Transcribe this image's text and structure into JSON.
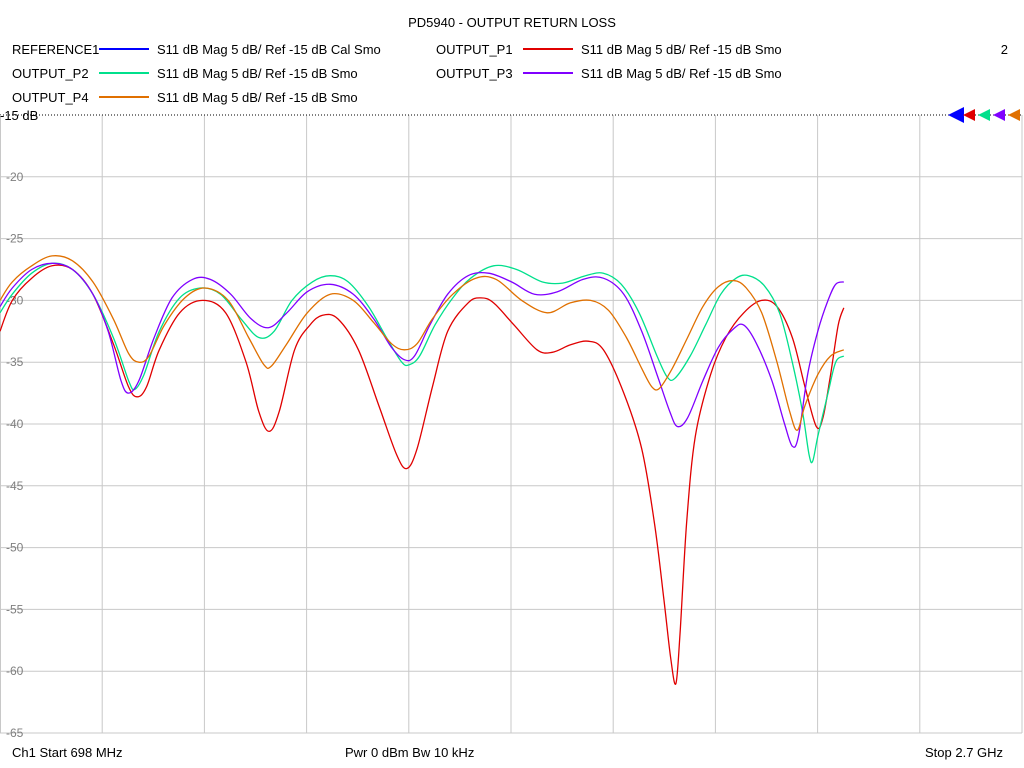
{
  "title": "PD5940 - OUTPUT RETURN LOSS",
  "channel_number": "2",
  "legend": [
    {
      "name": "REFERENCE1",
      "desc": "S11  dB Mag  5 dB/ Ref -15 dB  Cal Smo",
      "color": "#0000ff"
    },
    {
      "name": "OUTPUT_P1",
      "desc": "S11  dB Mag  5 dB/ Ref -15 dB  Smo",
      "color": "#e00000"
    },
    {
      "name": "OUTPUT_P2",
      "desc": "S11  dB Mag  5 dB/ Ref -15 dB  Smo",
      "color": "#00e08c"
    },
    {
      "name": "OUTPUT_P3",
      "desc": "S11  dB Mag  5 dB/ Ref -15 dB  Smo",
      "color": "#8000ff"
    },
    {
      "name": "OUTPUT_P4",
      "desc": "S11  dB Mag  5 dB/ Ref -15 dB  Smo",
      "color": "#e07000"
    }
  ],
  "footer": {
    "start": "Ch1  Start  698 MHz",
    "power": "Pwr  0 dBm  Bw  10 kHz",
    "stop": "Stop  2.7 GHz"
  },
  "chart_data": {
    "type": "line",
    "xlim": [
      698,
      2700
    ],
    "x_unit": "MHz",
    "ylim": [
      -65,
      -15
    ],
    "ref_label": "-15 dB",
    "y_ticks": [
      -20,
      -25,
      -30,
      -35,
      -40,
      -45,
      -50,
      -55,
      -60,
      -65
    ],
    "x_divisions": 10,
    "grid": true,
    "series": [
      {
        "name": "REFERENCE1",
        "color": "#0000ff",
        "points": []
      },
      {
        "name": "OUTPUT_P1",
        "color": "#e00000",
        "points": [
          [
            698,
            -32.5
          ],
          [
            722,
            -30
          ],
          [
            760,
            -28.2
          ],
          [
            800,
            -27.2
          ],
          [
            840,
            -27.5
          ],
          [
            880,
            -29.5
          ],
          [
            920,
            -33.5
          ],
          [
            950,
            -37
          ],
          [
            967,
            -37.8
          ],
          [
            985,
            -37
          ],
          [
            1010,
            -34
          ],
          [
            1050,
            -31
          ],
          [
            1095,
            -30
          ],
          [
            1140,
            -31
          ],
          [
            1180,
            -35
          ],
          [
            1205,
            -39
          ],
          [
            1225,
            -40.6
          ],
          [
            1245,
            -39
          ],
          [
            1275,
            -34
          ],
          [
            1305,
            -32
          ],
          [
            1330,
            -31.2
          ],
          [
            1360,
            -31.5
          ],
          [
            1400,
            -34
          ],
          [
            1440,
            -38.5
          ],
          [
            1475,
            -42.5
          ],
          [
            1495,
            -43.6
          ],
          [
            1515,
            -42
          ],
          [
            1545,
            -37
          ],
          [
            1575,
            -32.5
          ],
          [
            1615,
            -30.2
          ],
          [
            1640,
            -29.8
          ],
          [
            1665,
            -30.2
          ],
          [
            1705,
            -32
          ],
          [
            1750,
            -34
          ],
          [
            1780,
            -34.2
          ],
          [
            1815,
            -33.6
          ],
          [
            1850,
            -33.3
          ],
          [
            1880,
            -34
          ],
          [
            1920,
            -37.5
          ],
          [
            1955,
            -42
          ],
          [
            1980,
            -48
          ],
          [
            1998,
            -54
          ],
          [
            2012,
            -59
          ],
          [
            2022,
            -61
          ],
          [
            2030,
            -57
          ],
          [
            2043,
            -48
          ],
          [
            2060,
            -41
          ],
          [
            2090,
            -36
          ],
          [
            2120,
            -33
          ],
          [
            2155,
            -31
          ],
          [
            2190,
            -30
          ],
          [
            2220,
            -30.5
          ],
          [
            2250,
            -33
          ],
          [
            2275,
            -37
          ],
          [
            2297,
            -40.2
          ],
          [
            2310,
            -39.5
          ],
          [
            2325,
            -36
          ],
          [
            2340,
            -32
          ],
          [
            2351,
            -30.6
          ]
        ]
      },
      {
        "name": "OUTPUT_P2",
        "color": "#00e08c",
        "points": [
          [
            698,
            -31
          ],
          [
            722,
            -29.5
          ],
          [
            760,
            -27.8
          ],
          [
            800,
            -27
          ],
          [
            840,
            -27.5
          ],
          [
            880,
            -29.5
          ],
          [
            920,
            -33
          ],
          [
            950,
            -36.5
          ],
          [
            962,
            -37.2
          ],
          [
            980,
            -36
          ],
          [
            1010,
            -32.5
          ],
          [
            1050,
            -29.8
          ],
          [
            1090,
            -29
          ],
          [
            1130,
            -29.5
          ],
          [
            1170,
            -31.5
          ],
          [
            1205,
            -33
          ],
          [
            1235,
            -32.5
          ],
          [
            1270,
            -30
          ],
          [
            1310,
            -28.5
          ],
          [
            1345,
            -28
          ],
          [
            1380,
            -28.5
          ],
          [
            1420,
            -30.5
          ],
          [
            1455,
            -33
          ],
          [
            1485,
            -35
          ],
          [
            1500,
            -35.2
          ],
          [
            1520,
            -34.5
          ],
          [
            1550,
            -32
          ],
          [
            1585,
            -29.8
          ],
          [
            1620,
            -28.2
          ],
          [
            1665,
            -27.2
          ],
          [
            1710,
            -27.5
          ],
          [
            1760,
            -28.5
          ],
          [
            1800,
            -28.6
          ],
          [
            1845,
            -28
          ],
          [
            1880,
            -27.8
          ],
          [
            1915,
            -28.7
          ],
          [
            1950,
            -31
          ],
          [
            1985,
            -34.5
          ],
          [
            2005,
            -36.2
          ],
          [
            2020,
            -36.3
          ],
          [
            2050,
            -34.5
          ],
          [
            2080,
            -32
          ],
          [
            2110,
            -29.5
          ],
          [
            2140,
            -28.2
          ],
          [
            2165,
            -28
          ],
          [
            2195,
            -28.8
          ],
          [
            2225,
            -31
          ],
          [
            2250,
            -35
          ],
          [
            2270,
            -39
          ],
          [
            2283,
            -42.5
          ],
          [
            2290,
            -43
          ],
          [
            2300,
            -41
          ],
          [
            2320,
            -37.5
          ],
          [
            2335,
            -35
          ],
          [
            2351,
            -34.5
          ]
        ]
      },
      {
        "name": "OUTPUT_P3",
        "color": "#8000ff",
        "points": [
          [
            698,
            -30.5
          ],
          [
            722,
            -29
          ],
          [
            760,
            -27.5
          ],
          [
            800,
            -27
          ],
          [
            840,
            -27.5
          ],
          [
            880,
            -29.5
          ],
          [
            910,
            -32.5
          ],
          [
            935,
            -36.5
          ],
          [
            950,
            -37.5
          ],
          [
            970,
            -36.5
          ],
          [
            1000,
            -33
          ],
          [
            1035,
            -29.8
          ],
          [
            1075,
            -28.3
          ],
          [
            1110,
            -28.3
          ],
          [
            1150,
            -29.5
          ],
          [
            1190,
            -31.5
          ],
          [
            1225,
            -32.2
          ],
          [
            1260,
            -31
          ],
          [
            1300,
            -29.3
          ],
          [
            1345,
            -28.7
          ],
          [
            1390,
            -29.5
          ],
          [
            1430,
            -31.5
          ],
          [
            1465,
            -33.8
          ],
          [
            1490,
            -34.8
          ],
          [
            1510,
            -34.5
          ],
          [
            1540,
            -32
          ],
          [
            1575,
            -29.5
          ],
          [
            1615,
            -28
          ],
          [
            1655,
            -27.8
          ],
          [
            1700,
            -28.5
          ],
          [
            1745,
            -29.5
          ],
          [
            1790,
            -29.3
          ],
          [
            1840,
            -28.3
          ],
          [
            1880,
            -28.2
          ],
          [
            1920,
            -29.5
          ],
          [
            1955,
            -32.5
          ],
          [
            1985,
            -36
          ],
          [
            2010,
            -39
          ],
          [
            2025,
            -40.2
          ],
          [
            2045,
            -39.5
          ],
          [
            2075,
            -36.5
          ],
          [
            2105,
            -33.8
          ],
          [
            2135,
            -32.3
          ],
          [
            2155,
            -32
          ],
          [
            2180,
            -33.5
          ],
          [
            2210,
            -36.5
          ],
          [
            2235,
            -40
          ],
          [
            2250,
            -41.8
          ],
          [
            2262,
            -41
          ],
          [
            2280,
            -36
          ],
          [
            2300,
            -32.5
          ],
          [
            2320,
            -30
          ],
          [
            2335,
            -28.7
          ],
          [
            2351,
            -28.5
          ]
        ]
      },
      {
        "name": "OUTPUT_P4",
        "color": "#e07000",
        "points": [
          [
            698,
            -30
          ],
          [
            722,
            -28.5
          ],
          [
            760,
            -27.2
          ],
          [
            800,
            -26.4
          ],
          [
            840,
            -26.8
          ],
          [
            880,
            -28.5
          ],
          [
            920,
            -31.5
          ],
          [
            950,
            -34.3
          ],
          [
            970,
            -35
          ],
          [
            990,
            -34.5
          ],
          [
            1020,
            -32
          ],
          [
            1060,
            -29.8
          ],
          [
            1100,
            -29
          ],
          [
            1145,
            -30
          ],
          [
            1185,
            -33
          ],
          [
            1215,
            -35.2
          ],
          [
            1230,
            -35.3
          ],
          [
            1260,
            -33.5
          ],
          [
            1300,
            -31
          ],
          [
            1345,
            -29.5
          ],
          [
            1390,
            -30
          ],
          [
            1430,
            -31.8
          ],
          [
            1465,
            -33.5
          ],
          [
            1490,
            -34
          ],
          [
            1515,
            -33.5
          ],
          [
            1545,
            -31.5
          ],
          [
            1585,
            -29.5
          ],
          [
            1630,
            -28.2
          ],
          [
            1670,
            -28.3
          ],
          [
            1720,
            -30
          ],
          [
            1770,
            -31
          ],
          [
            1815,
            -30.2
          ],
          [
            1855,
            -30
          ],
          [
            1890,
            -30.8
          ],
          [
            1925,
            -33
          ],
          [
            1955,
            -35.5
          ],
          [
            1975,
            -37
          ],
          [
            1990,
            -37.1
          ],
          [
            2015,
            -35.5
          ],
          [
            2045,
            -33
          ],
          [
            2075,
            -30.5
          ],
          [
            2105,
            -28.9
          ],
          [
            2135,
            -28.4
          ],
          [
            2160,
            -29
          ],
          [
            2190,
            -31
          ],
          [
            2220,
            -35
          ],
          [
            2245,
            -39
          ],
          [
            2260,
            -40.5
          ],
          [
            2275,
            -38.5
          ],
          [
            2300,
            -36
          ],
          [
            2325,
            -34.5
          ],
          [
            2351,
            -34
          ]
        ]
      }
    ]
  }
}
